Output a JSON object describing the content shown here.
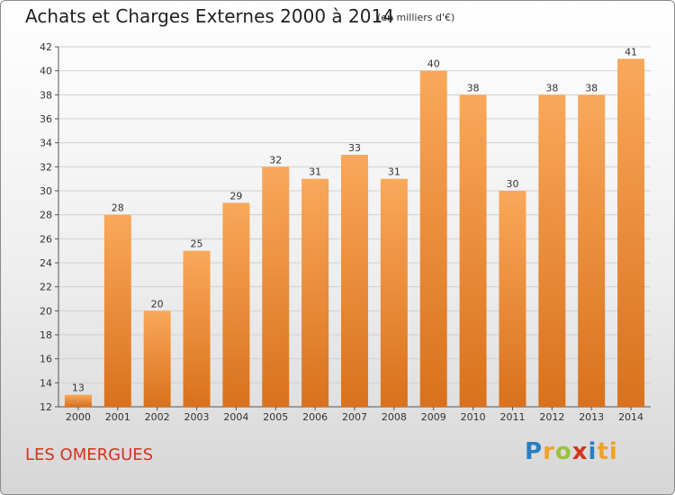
{
  "header": {
    "title": "Achats et Charges Externes 2000 à 2014",
    "unit": "(en milliers d'€)"
  },
  "footer": {
    "town": "LES OMERGUES",
    "logo": [
      "P",
      "r",
      "o",
      "x",
      "i",
      "ti"
    ]
  },
  "colors": {
    "bar_top": "#f9a85a",
    "bar_bottom": "#d9711c",
    "grid": "#d0d0d0",
    "town": "#d4341c"
  },
  "chart_data": {
    "type": "bar",
    "title": "Achats et Charges Externes 2000 à 2014",
    "subtitle": "(en milliers d'€)",
    "categories": [
      "2000",
      "2001",
      "2002",
      "2003",
      "2004",
      "2005",
      "2006",
      "2007",
      "2008",
      "2009",
      "2010",
      "2011",
      "2012",
      "2013",
      "2014"
    ],
    "values": [
      13,
      28,
      20,
      25,
      29,
      32,
      31,
      33,
      31,
      40,
      38,
      30,
      38,
      38,
      41
    ],
    "ylim": [
      12,
      42
    ],
    "yticks": [
      12,
      14,
      16,
      18,
      20,
      22,
      24,
      26,
      28,
      30,
      32,
      34,
      36,
      38,
      40,
      42
    ],
    "grid": true,
    "data_labels": true
  }
}
